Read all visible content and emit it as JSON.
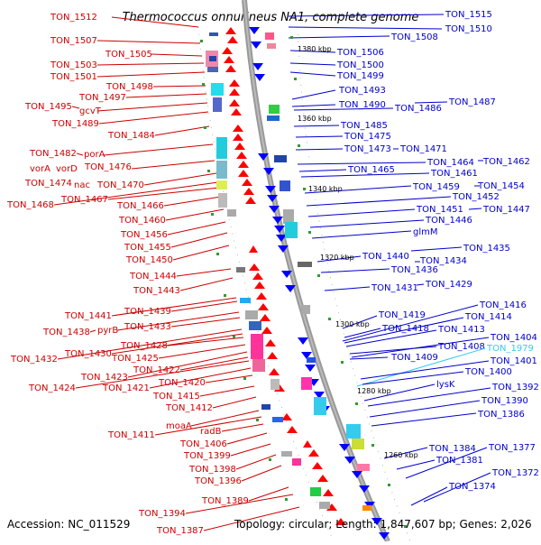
{
  "title": "Thermococcus onnurineus NA1, complete genome",
  "footer": {
    "accession": "Accession: NC_011529",
    "summary": "Topology: circular; Length: 1,847,607 bp; Genes: 2,026"
  },
  "colors": {
    "forward": "#ff0000",
    "reverse": "#0000ff",
    "left_label": "#cc0000",
    "right_label": "#0000cc",
    "highlight": "#33ccee",
    "backbone": "#999999"
  },
  "kbp_ticks": [
    "1380 kbp",
    "1360 kbp",
    "1340 kbp",
    "1320 kbp",
    "1300 kbp",
    "1280 kbp",
    "1260 kbp"
  ],
  "left_labels": [
    "TON_1512",
    "TON_1507",
    "TON_1505",
    "TON_1503",
    "TON_1501",
    "TON_1498",
    "TON_1497",
    "TON_1495",
    "gcvT",
    "TON_1489",
    "TON_1484",
    "TON_1482",
    "porA",
    "vorA",
    "vorD",
    "TON_1476",
    "TON_1474",
    "nac",
    "TON_1470",
    "TON_1468",
    "TON_1467",
    "TON_1466",
    "TON_1460",
    "TON_1456",
    "TON_1455",
    "TON_1450",
    "TON_1444",
    "TON_1443",
    "TON_1441",
    "TON_1439",
    "TON_1438",
    "pyrB",
    "TON_1433",
    "TON_1432",
    "TON_1430",
    "TON_1428",
    "TON_1425",
    "TON_1423",
    "TON_1422",
    "TON_1424",
    "TON_1421",
    "TON_1420",
    "TON_1415",
    "TON_1412",
    "moaA",
    "TON_1411",
    "radB",
    "TON_1406",
    "TON_1399",
    "TON_1398",
    "TON_1396",
    "TON_1389",
    "TON_1394",
    "TON_1387"
  ],
  "right_labels": [
    "TON_1515",
    "TON_1510",
    "TON_1508",
    "TON_1506",
    "TON_1500",
    "TON_1499",
    "TON_1493",
    "TON_1490",
    "TON_1487",
    "TON_1486",
    "TON_1485",
    "TON_1475",
    "TON_1473",
    "TON_1471",
    "TON_1464",
    "TON_1462",
    "TON_1465",
    "TON_1461",
    "TON_1459",
    "TON_1454",
    "TON_1452",
    "TON_1451",
    "TON_1447",
    "TON_1446",
    "glmM",
    "TON_1440",
    "TON_1435",
    "TON_1436",
    "TON_1434",
    "TON_1431",
    "TON_1429",
    "TON_1416",
    "TON_1419",
    "TON_1414",
    "TON_1418",
    "TON_1413",
    "TON_1404",
    "TON_1408",
    "TON_1979",
    "TON_1409",
    "TON_1401",
    "TON_1400",
    "lysK",
    "TON_1392",
    "TON_1390",
    "TON_1386",
    "TON_1384",
    "TON_1377",
    "TON_1381",
    "TON_1372",
    "TON_1374"
  ]
}
